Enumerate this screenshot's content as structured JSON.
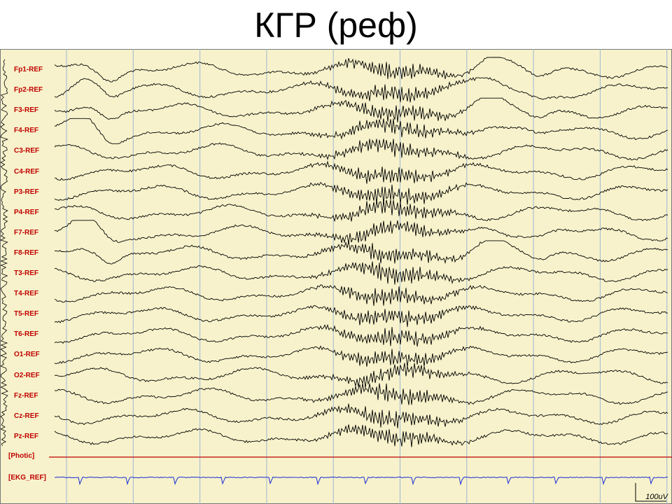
{
  "title": "КГР (реф)",
  "channels": [
    "Fp1-REF",
    "Fp2-REF",
    "F3-REF",
    "F4-REF",
    "C3-REF",
    "C4-REF",
    "P3-REF",
    "P4-REF",
    "F7-REF",
    "F8-REF",
    "T3-REF",
    "T4-REF",
    "T5-REF",
    "T6-REF",
    "O1-REF",
    "O2-REF",
    "Fz-REF",
    "Cz-REF",
    "Pz-REF"
  ],
  "photic_label": "[Photic]",
  "ekg_label": "[EKG_REF]",
  "scale_label": "100uV",
  "colors": {
    "background": "#f7f2cb",
    "grid": "#9fb6d4",
    "label": "#c00000",
    "trace": "#000000",
    "photic_line": "#c00000",
    "ekg_trace": "#1a2fd6"
  }
}
